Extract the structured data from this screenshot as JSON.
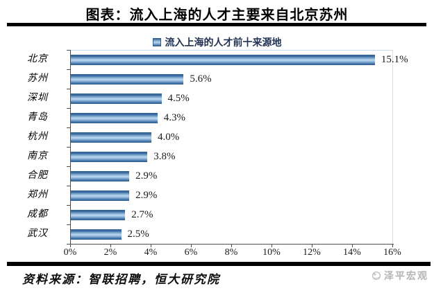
{
  "page": {
    "title": "图表：流入上海的人才主要来自北京苏州",
    "source_note": "资料来源：智联招聘，恒大研究院",
    "watermark": "泽平宏观"
  },
  "chart_data": {
    "type": "bar",
    "orientation": "horizontal",
    "title": "流入上海的人才前十来源地",
    "legend_position": "top-center",
    "grid": false,
    "categories": [
      "北京",
      "苏州",
      "深圳",
      "青岛",
      "杭州",
      "南京",
      "合肥",
      "郑州",
      "成都",
      "武汉"
    ],
    "values": [
      15.1,
      5.6,
      4.5,
      4.3,
      4.0,
      3.8,
      2.9,
      2.9,
      2.7,
      2.5
    ],
    "value_labels": [
      "15.1%",
      "5.6%",
      "4.5%",
      "4.3%",
      "4.0%",
      "3.8%",
      "2.9%",
      "2.9%",
      "2.7%",
      "2.5%"
    ],
    "xlabel": "",
    "ylabel": "",
    "xlim": [
      0,
      16
    ],
    "x_ticks": [
      "0%",
      "2%",
      "4%",
      "6%",
      "8%",
      "10%",
      "12%",
      "14%",
      "16%"
    ],
    "colors": {
      "bar_main": "#4f81bd",
      "bar_edge": "#2e5d90",
      "bar_highlight": "#bdd7ee",
      "legend_text": "#1f3050",
      "axis": "#4d4d4d",
      "plot_border": "#c6dcec",
      "watermark_gray": "#b5b5b5"
    }
  }
}
